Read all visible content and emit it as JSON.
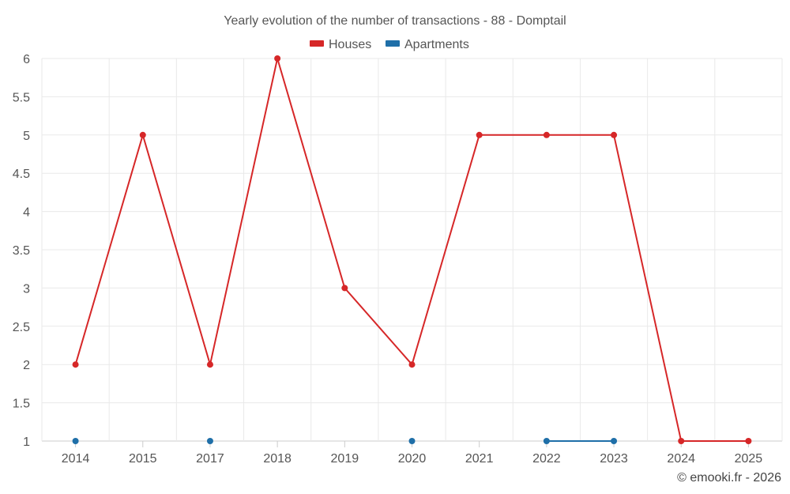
{
  "chart_data": {
    "type": "line",
    "title": "Yearly evolution of the number of transactions - 88 - Domptail",
    "categories": [
      "2014",
      "2015",
      "2017",
      "2018",
      "2019",
      "2020",
      "2021",
      "2022",
      "2023",
      "2024",
      "2025"
    ],
    "ylim": [
      1,
      6
    ],
    "yticks": [
      "1",
      "1.5",
      "2",
      "2.5",
      "3",
      "3.5",
      "4",
      "4.5",
      "5",
      "5.5",
      "6"
    ],
    "xlabel": "",
    "ylabel": "",
    "grid": true,
    "legend_position": "top-center",
    "series": [
      {
        "name": "Houses",
        "color": "#d62728",
        "values": [
          2,
          5,
          2,
          6,
          3,
          2,
          5,
          5,
          5,
          1,
          1
        ]
      },
      {
        "name": "Apartments",
        "color": "#1f6fa8",
        "values": [
          1,
          null,
          1,
          null,
          null,
          1,
          null,
          1,
          1,
          null,
          null
        ]
      }
    ]
  },
  "credit": "© emooki.fr - 2026"
}
